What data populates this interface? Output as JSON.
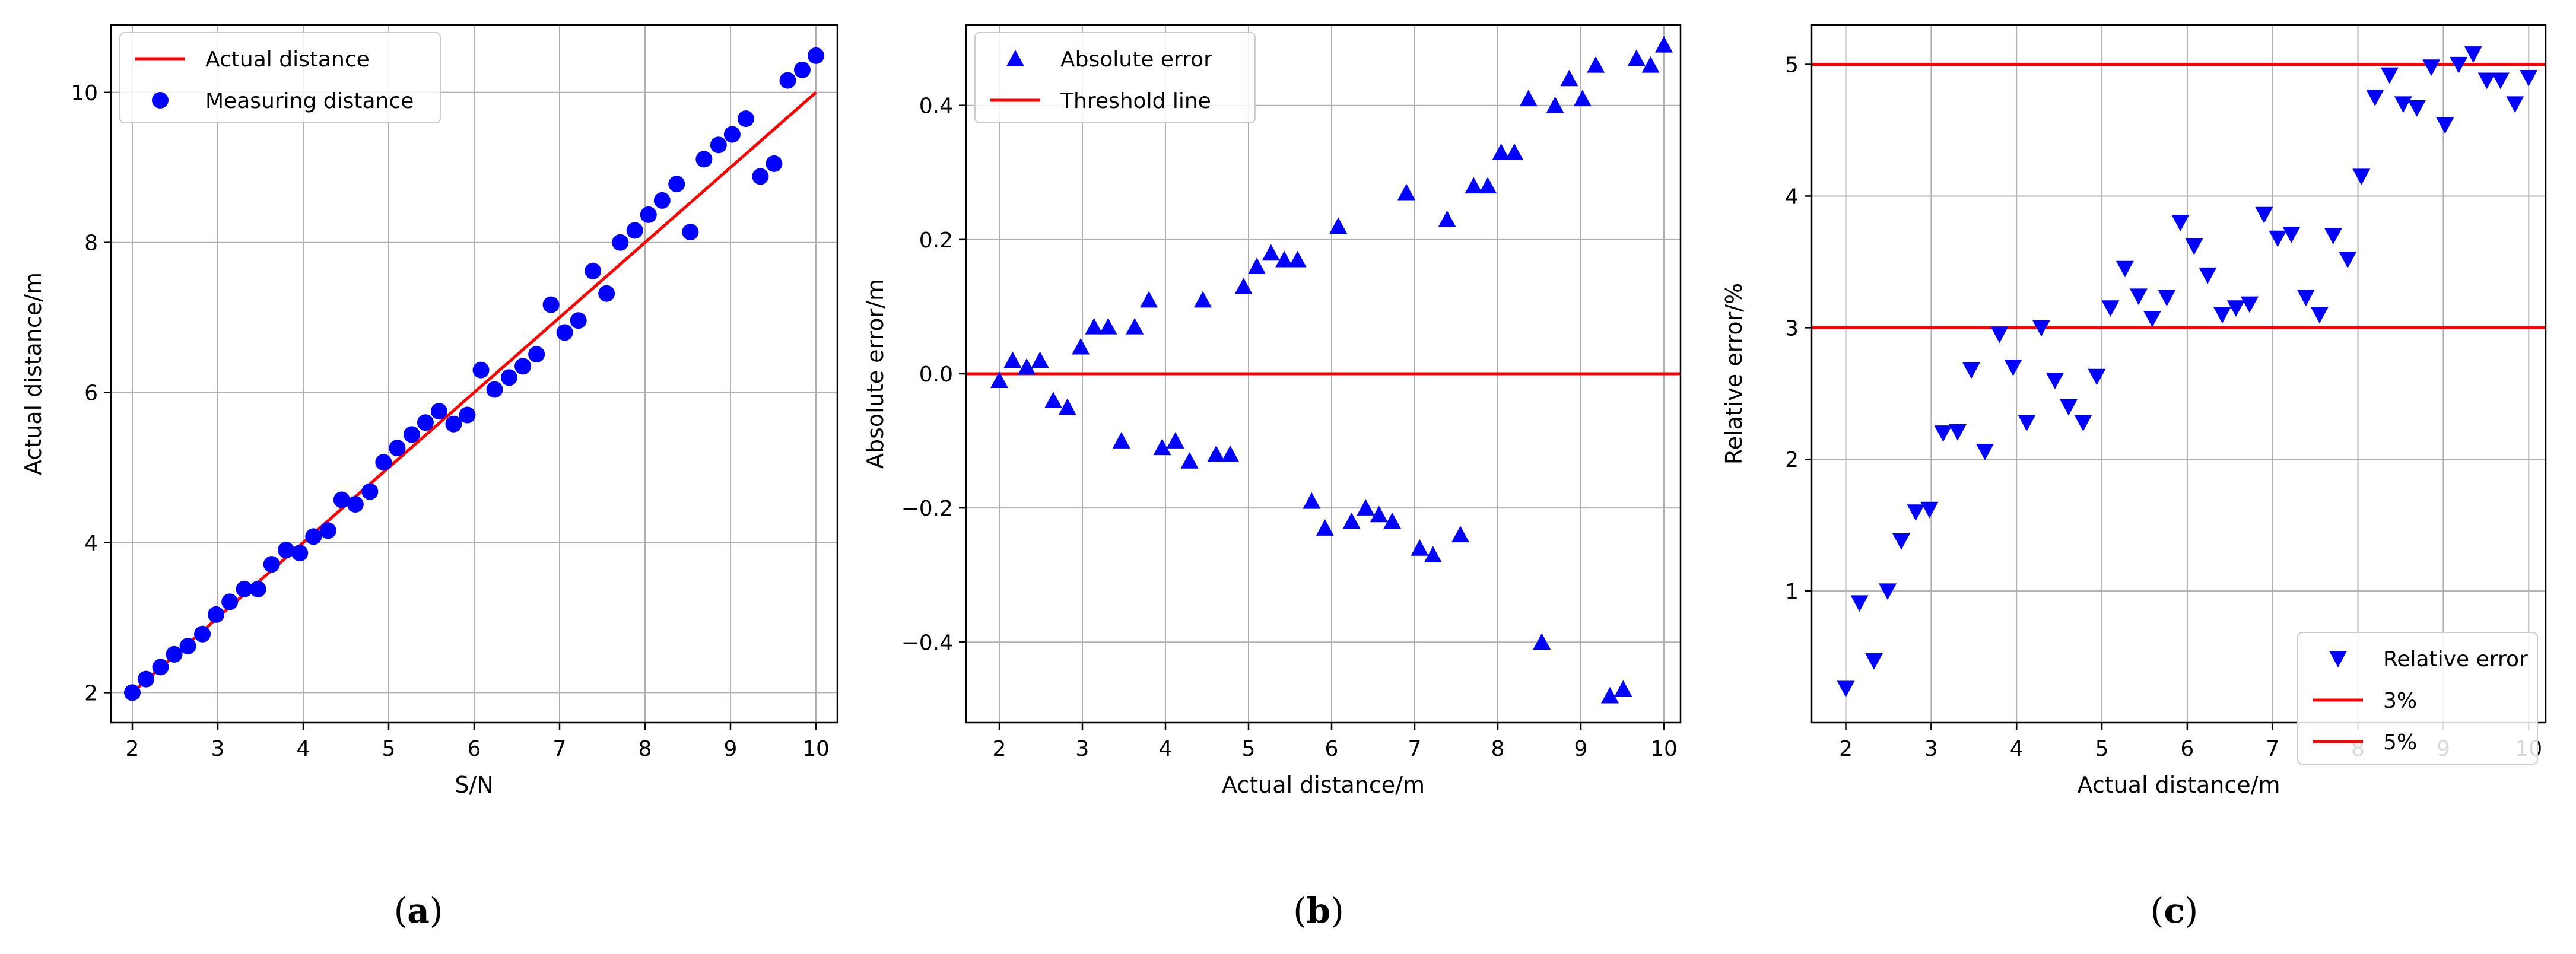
{
  "chart_data": [
    {
      "type": "scatter",
      "caption_letter": "a",
      "xlabel": "S/N",
      "ylabel": "Actual distance/m",
      "xlim": [
        1.75,
        10.25
      ],
      "ylim": [
        1.6,
        10.9
      ],
      "xticks": [
        2,
        3,
        4,
        5,
        6,
        7,
        8,
        9,
        10
      ],
      "yticks": [
        2,
        4,
        6,
        8,
        10
      ],
      "grid": true,
      "legend_position": "top-left",
      "colors": {
        "line": "#ff0000",
        "marker": "#0000ff"
      },
      "series": [
        {
          "name": "Actual distance",
          "kind": "line",
          "color": "#ff0000",
          "x": [
            2,
            10
          ],
          "y": [
            2,
            10
          ]
        },
        {
          "name": "Measuring distance",
          "kind": "scatter",
          "marker": "circle",
          "color": "#0000ff",
          "x": [
            2.0,
            2.16,
            2.33,
            2.49,
            2.65,
            2.82,
            2.98,
            3.14,
            3.31,
            3.47,
            3.63,
            3.8,
            3.96,
            4.12,
            4.29,
            4.45,
            4.61,
            4.78,
            4.94,
            5.1,
            5.27,
            5.43,
            5.59,
            5.76,
            5.92,
            6.08,
            6.24,
            6.41,
            6.57,
            6.73,
            6.9,
            7.06,
            7.22,
            7.39,
            7.55,
            7.71,
            7.88,
            8.04,
            8.2,
            8.37,
            8.53,
            8.69,
            8.86,
            9.02,
            9.18,
            9.35,
            9.51,
            9.67,
            9.84,
            10.0
          ],
          "y": [
            2.0,
            2.18,
            2.34,
            2.51,
            2.62,
            2.78,
            3.04,
            3.21,
            3.38,
            3.38,
            3.71,
            3.9,
            3.86,
            4.08,
            4.16,
            4.57,
            4.51,
            4.68,
            5.07,
            5.26,
            5.44,
            5.6,
            5.75,
            5.58,
            5.7,
            6.3,
            6.04,
            6.2,
            6.35,
            6.51,
            7.17,
            6.8,
            6.96,
            7.62,
            7.32,
            8.0,
            8.16,
            8.37,
            8.56,
            8.78,
            8.14,
            9.11,
            9.3,
            9.44,
            9.65,
            8.88,
            9.05,
            10.16,
            10.3,
            10.49
          ]
        }
      ]
    },
    {
      "type": "scatter",
      "caption_letter": "b",
      "xlabel": "Actual distance/m",
      "ylabel": "Absolute error/m",
      "xlim": [
        1.6,
        10.2
      ],
      "ylim": [
        -0.52,
        0.52
      ],
      "xticks": [
        2,
        3,
        4,
        5,
        6,
        7,
        8,
        9,
        10
      ],
      "yticks": [
        -0.4,
        -0.2,
        0.0,
        0.2,
        0.4
      ],
      "ytick_labels": [
        "−0.4",
        "−0.2",
        "0.0",
        "0.2",
        "0.4"
      ],
      "grid": true,
      "legend_position": "top-left",
      "colors": {
        "line": "#ff0000",
        "marker": "#0000ff"
      },
      "series": [
        {
          "name": "Absolute error",
          "kind": "scatter",
          "marker": "triangle-up",
          "color": "#0000ff",
          "x": [
            2.0,
            2.16,
            2.33,
            2.49,
            2.65,
            2.82,
            2.98,
            3.14,
            3.31,
            3.47,
            3.63,
            3.8,
            3.96,
            4.12,
            4.29,
            4.45,
            4.61,
            4.78,
            4.94,
            5.1,
            5.27,
            5.43,
            5.59,
            5.76,
            5.92,
            6.08,
            6.24,
            6.41,
            6.57,
            6.73,
            6.9,
            7.06,
            7.22,
            7.39,
            7.55,
            7.71,
            7.88,
            8.04,
            8.2,
            8.37,
            8.53,
            8.69,
            8.86,
            9.02,
            9.18,
            9.35,
            9.51,
            9.67,
            9.84,
            10.0
          ],
          "y": [
            -0.01,
            0.02,
            0.01,
            0.02,
            -0.04,
            -0.05,
            0.04,
            0.07,
            0.07,
            -0.1,
            0.07,
            0.11,
            -0.11,
            -0.1,
            -0.13,
            0.11,
            -0.12,
            -0.12,
            0.13,
            0.16,
            0.18,
            0.17,
            0.17,
            -0.19,
            -0.23,
            0.22,
            -0.22,
            -0.2,
            -0.21,
            -0.22,
            0.27,
            -0.26,
            -0.27,
            0.23,
            -0.24,
            0.28,
            0.28,
            0.33,
            0.33,
            0.41,
            -0.4,
            0.4,
            0.44,
            0.41,
            0.46,
            -0.48,
            -0.47,
            0.47,
            0.46,
            0.49
          ]
        },
        {
          "name": "Threshold line",
          "kind": "hline",
          "color": "#ff0000",
          "y": 0.0
        }
      ]
    },
    {
      "type": "scatter",
      "caption_letter": "c",
      "xlabel": "Actual distance/m",
      "ylabel": "Relative error/%",
      "xlim": [
        1.6,
        10.2
      ],
      "ylim": [
        0.0,
        5.3
      ],
      "xticks": [
        2,
        3,
        4,
        5,
        6,
        7,
        8,
        9,
        10
      ],
      "yticks": [
        1,
        2,
        3,
        4,
        5
      ],
      "grid": true,
      "legend_position": "bottom-right",
      "colors": {
        "line": "#ff0000",
        "marker": "#0000ff"
      },
      "series": [
        {
          "name": "Relative error",
          "kind": "scatter",
          "marker": "triangle-down",
          "color": "#0000ff",
          "x": [
            2.0,
            2.16,
            2.33,
            2.49,
            2.65,
            2.82,
            2.98,
            3.14,
            3.31,
            3.47,
            3.63,
            3.8,
            3.96,
            4.12,
            4.29,
            4.45,
            4.61,
            4.78,
            4.94,
            5.1,
            5.27,
            5.43,
            5.59,
            5.76,
            5.92,
            6.08,
            6.24,
            6.41,
            6.57,
            6.73,
            6.9,
            7.06,
            7.22,
            7.39,
            7.55,
            7.71,
            7.88,
            8.04,
            8.2,
            8.37,
            8.53,
            8.69,
            8.86,
            9.02,
            9.18,
            9.35,
            9.51,
            9.67,
            9.84,
            10.0
          ],
          "y": [
            0.26,
            0.91,
            0.47,
            1.0,
            1.38,
            1.6,
            1.62,
            2.2,
            2.21,
            2.68,
            2.06,
            2.95,
            2.7,
            2.28,
            3.0,
            2.6,
            2.4,
            2.28,
            2.63,
            3.15,
            3.45,
            3.24,
            3.07,
            3.23,
            3.8,
            3.62,
            3.4,
            3.1,
            3.15,
            3.18,
            3.86,
            3.68,
            3.71,
            3.23,
            3.1,
            3.7,
            3.52,
            4.15,
            4.75,
            4.92,
            4.7,
            4.67,
            4.98,
            4.54,
            5.0,
            5.08,
            4.88,
            4.88,
            4.7,
            4.9
          ]
        },
        {
          "name": "3%",
          "kind": "hline",
          "color": "#ff0000",
          "y": 3
        },
        {
          "name": "5%",
          "kind": "hline",
          "color": "#ff0000",
          "y": 5
        }
      ]
    }
  ]
}
